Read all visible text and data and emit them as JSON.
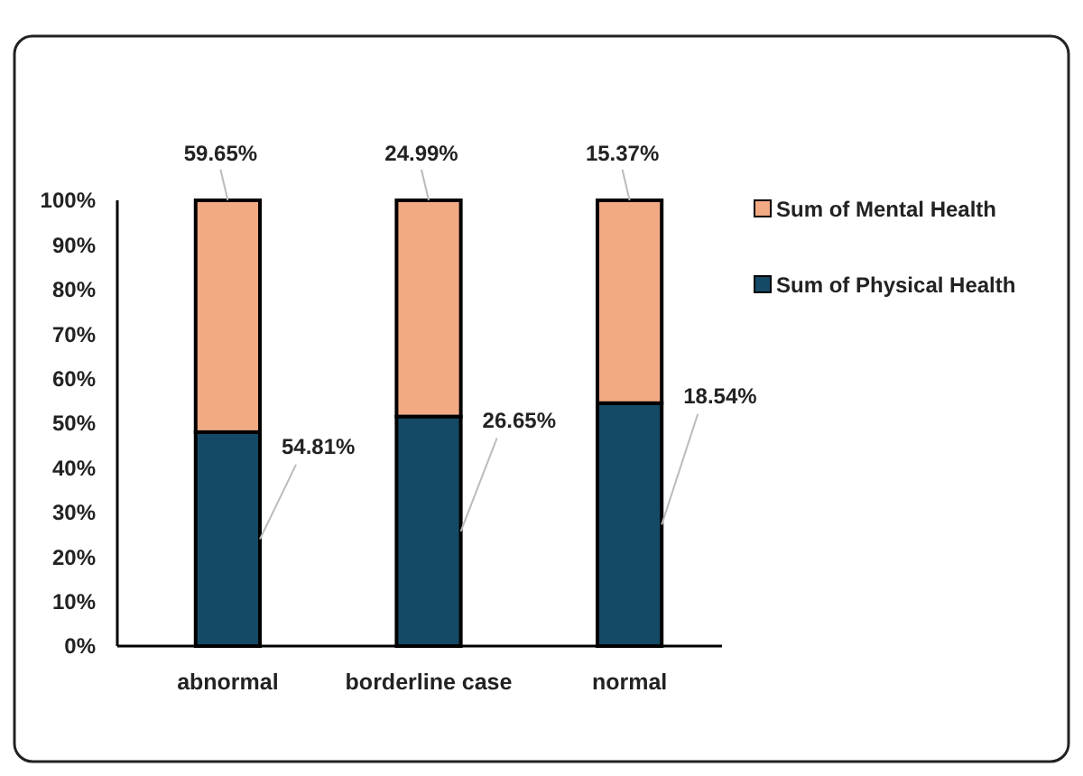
{
  "chart_data": {
    "type": "bar",
    "stacked": true,
    "categories": [
      "abnormal",
      "borderline case",
      "normal"
    ],
    "series": [
      {
        "name": "Sum of Physical Health",
        "color": "#154a66",
        "values": [
          48,
          51.5,
          54.5
        ]
      },
      {
        "name": "Sum of Mental Health",
        "color": "#f2aa84",
        "values": [
          52,
          48.5,
          45.5
        ]
      }
    ],
    "annotations": [
      {
        "text": "54.81%",
        "x": "abnormal",
        "y": 48
      },
      {
        "text": "26.65%",
        "x": "borderline case",
        "y": 51.5
      },
      {
        "text": "18.54%",
        "x": "normal",
        "y": 54.5
      },
      {
        "text": "59.65%",
        "x": "abnormal",
        "y": 100
      },
      {
        "text": "24.99%",
        "x": "borderline case",
        "y": 100
      },
      {
        "text": "15.37%",
        "x": "normal",
        "y": 100
      }
    ],
    "ylim": [
      0,
      100
    ],
    "yticks": [
      {
        "value": 0,
        "label": "0%"
      },
      {
        "value": 10,
        "label": "10%"
      },
      {
        "value": 20,
        "label": "20%"
      },
      {
        "value": 30,
        "label": "30%"
      },
      {
        "value": 40,
        "label": "40%"
      },
      {
        "value": 50,
        "label": "50%"
      },
      {
        "value": 60,
        "label": "60%"
      },
      {
        "value": 70,
        "label": "70%"
      },
      {
        "value": 80,
        "label": "80%"
      },
      {
        "value": 90,
        "label": "90%"
      },
      {
        "value": 100,
        "label": "100%"
      }
    ],
    "legend": "right",
    "grid": false
  }
}
